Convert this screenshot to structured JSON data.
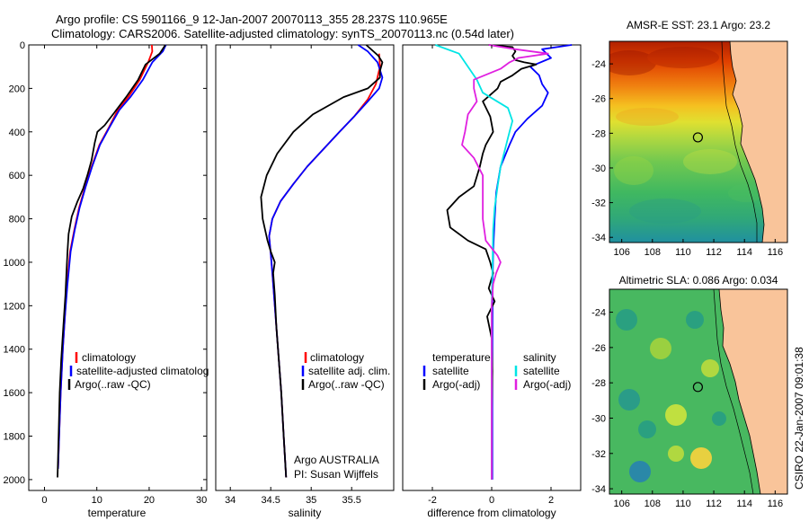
{
  "figure": {
    "title_line1": "Argo profile: CS 5901166_9 12-Jan-2007 20070113_355 28.237S 110.965E",
    "title_line2": "Climatology: CARS2006. Satellite-adjusted climatology: synTS_20070113.nc (0.54d later)",
    "footer_vertical": "CSIRO 22-Jan-2007 09:01:38"
  },
  "colors": {
    "climatology": "#ff0000",
    "satellite": "#0000ff",
    "argo": "#000000",
    "salinity_satellite": "#00e5e5",
    "salinity_argo": "#e020e0",
    "land": "#f9c49a"
  },
  "chart_data": [
    {
      "id": "temperature",
      "type": "line",
      "xlabel": "temperature",
      "ylabel": "",
      "xlim": [
        -3,
        31
      ],
      "ylim": [
        2050,
        0
      ],
      "y_inverted": true,
      "xticks": [
        0,
        10,
        20,
        30
      ],
      "yticks": [
        0,
        200,
        400,
        600,
        800,
        1000,
        1200,
        1400,
        1600,
        1800,
        2000
      ],
      "legend": [
        "climatology",
        "satellite-adjusted climatolog",
        "Argo(..raw -QC)"
      ],
      "legend_position": "lower-right",
      "series": [
        {
          "name": "climatology",
          "color": "#ff0000",
          "points": [
            [
              20.5,
              0
            ],
            [
              20.6,
              30
            ],
            [
              19.8,
              80
            ],
            [
              18.2,
              160
            ],
            [
              16,
              240
            ],
            [
              14,
              300
            ],
            [
              12.3,
              380
            ],
            [
              10.5,
              460
            ],
            [
              9,
              560
            ],
            [
              7.8,
              650
            ],
            [
              6.6,
              750
            ],
            [
              5.7,
              850
            ],
            [
              4.9,
              950
            ],
            [
              4.3,
              1100
            ],
            [
              3.9,
              1250
            ],
            [
              3.5,
              1400
            ],
            [
              3.1,
              1600
            ],
            [
              2.8,
              1800
            ],
            [
              2.6,
              1950
            ]
          ]
        },
        {
          "name": "satellite-adjusted climatolog",
          "color": "#0000ff",
          "points": [
            [
              23.2,
              0
            ],
            [
              22.6,
              30
            ],
            [
              20.6,
              80
            ],
            [
              18.8,
              160
            ],
            [
              16.4,
              240
            ],
            [
              14.3,
              300
            ],
            [
              12.4,
              380
            ],
            [
              10.6,
              460
            ],
            [
              9.1,
              560
            ],
            [
              7.9,
              650
            ],
            [
              6.7,
              750
            ],
            [
              5.8,
              850
            ],
            [
              5,
              950
            ],
            [
              4.4,
              1100
            ],
            [
              3.9,
              1250
            ],
            [
              3.5,
              1400
            ],
            [
              3.1,
              1600
            ],
            [
              2.8,
              1800
            ],
            [
              2.6,
              1950
            ]
          ]
        },
        {
          "name": "Argo(..raw -QC)",
          "color": "#000000",
          "points": [
            [
              23.1,
              0
            ],
            [
              22,
              40
            ],
            [
              19.3,
              90
            ],
            [
              17.9,
              160
            ],
            [
              15.6,
              240
            ],
            [
              13.4,
              310
            ],
            [
              11.5,
              370
            ],
            [
              10.1,
              400
            ],
            [
              9.6,
              450
            ],
            [
              9,
              530
            ],
            [
              8.2,
              600
            ],
            [
              7.4,
              660
            ],
            [
              6.3,
              720
            ],
            [
              5.2,
              790
            ],
            [
              4.6,
              870
            ],
            [
              4.4,
              950
            ],
            [
              4.2,
              1050
            ],
            [
              4,
              1150
            ],
            [
              3.6,
              1300
            ],
            [
              3.2,
              1450
            ],
            [
              2.9,
              1600
            ],
            [
              2.7,
              1800
            ],
            [
              2.5,
              1990
            ]
          ]
        }
      ]
    },
    {
      "id": "salinity",
      "type": "line",
      "xlabel": "salinity",
      "ylabel": "",
      "xlim": [
        33.82,
        36.02
      ],
      "ylim": [
        2050,
        0
      ],
      "y_inverted": true,
      "xticks": [
        34,
        34.5,
        35,
        35.5
      ],
      "xtick_labels": [
        "34",
        "34.5",
        "35",
        "35.5"
      ],
      "legend": [
        "climatology",
        "satellite adj. clim.",
        "Argo(..raw -QC)"
      ],
      "legend_position": "lower-right",
      "annotation_lines": [
        "Argo AUSTRALIA",
        "PI: Susan Wijffels"
      ],
      "series": [
        {
          "name": "climatology",
          "color": "#ff0000",
          "points": [
            [
              35.84,
              40
            ],
            [
              35.85,
              100
            ],
            [
              35.8,
              180
            ],
            [
              35.7,
              250
            ],
            [
              35.53,
              330
            ],
            [
              35.35,
              400
            ],
            [
              35.15,
              480
            ],
            [
              34.95,
              560
            ],
            [
              34.78,
              640
            ],
            [
              34.62,
              720
            ],
            [
              34.52,
              800
            ],
            [
              34.48,
              880
            ],
            [
              34.5,
              960
            ],
            [
              34.52,
              1050
            ],
            [
              34.55,
              1200
            ],
            [
              34.59,
              1400
            ],
            [
              34.63,
              1600
            ],
            [
              34.66,
              1800
            ],
            [
              34.69,
              1990
            ]
          ]
        },
        {
          "name": "satellite adj. clim.",
          "color": "#0000ff",
          "points": [
            [
              35.58,
              0
            ],
            [
              35.7,
              30
            ],
            [
              35.82,
              80
            ],
            [
              35.88,
              150
            ],
            [
              35.84,
              200
            ],
            [
              35.7,
              260
            ],
            [
              35.53,
              330
            ],
            [
              35.35,
              400
            ],
            [
              35.15,
              480
            ],
            [
              34.95,
              560
            ],
            [
              34.78,
              640
            ],
            [
              34.62,
              720
            ],
            [
              34.52,
              800
            ],
            [
              34.48,
              880
            ],
            [
              34.5,
              960
            ],
            [
              34.52,
              1050
            ],
            [
              34.55,
              1200
            ],
            [
              34.59,
              1400
            ],
            [
              34.63,
              1600
            ],
            [
              34.66,
              1800
            ],
            [
              34.69,
              1990
            ]
          ]
        },
        {
          "name": "Argo(..raw -QC)",
          "color": "#000000",
          "points": [
            [
              35.68,
              0
            ],
            [
              35.83,
              50
            ],
            [
              35.88,
              80
            ],
            [
              35.85,
              120
            ],
            [
              35.85,
              150
            ],
            [
              35.7,
              200
            ],
            [
              35.4,
              240
            ],
            [
              35.02,
              320
            ],
            [
              34.78,
              400
            ],
            [
              34.58,
              500
            ],
            [
              34.45,
              600
            ],
            [
              34.38,
              700
            ],
            [
              34.4,
              800
            ],
            [
              34.46,
              900
            ],
            [
              34.5,
              950
            ],
            [
              34.55,
              1000
            ],
            [
              34.53,
              1050
            ],
            [
              34.55,
              1150
            ],
            [
              34.57,
              1300
            ],
            [
              34.6,
              1450
            ],
            [
              34.63,
              1600
            ],
            [
              34.66,
              1800
            ],
            [
              34.69,
              1990
            ]
          ]
        }
      ]
    },
    {
      "id": "difference",
      "type": "line",
      "xlabel": "difference from climatology",
      "ylabel": "",
      "xlim": [
        -3,
        3
      ],
      "ylim": [
        2050,
        0
      ],
      "y_inverted": true,
      "xticks": [
        -2,
        0,
        2
      ],
      "legend_columns": [
        {
          "heading": "temperature",
          "entries": [
            "satellite",
            "Argo(-adj)"
          ]
        },
        {
          "heading": "salinity",
          "entries": [
            "satellite",
            "Argo(-adj)"
          ]
        }
      ],
      "legend_position": "lower-center",
      "series": [
        {
          "name": "temperature satellite",
          "color": "#0000ff",
          "points": [
            [
              2.7,
              0
            ],
            [
              1.7,
              20
            ],
            [
              2,
              60
            ],
            [
              1.3,
              100
            ],
            [
              1.6,
              140
            ],
            [
              1.7,
              180
            ],
            [
              1.9,
              220
            ],
            [
              1.7,
              280
            ],
            [
              1.2,
              340
            ],
            [
              0.8,
              400
            ],
            [
              0.6,
              460
            ],
            [
              0.3,
              560
            ],
            [
              0.15,
              680
            ],
            [
              0.1,
              800
            ],
            [
              0.05,
              950
            ],
            [
              0.03,
              1100
            ],
            [
              0.02,
              1500
            ],
            [
              0.02,
              2000
            ]
          ]
        },
        {
          "name": "temperature Argo(-adj)",
          "color": "#000000",
          "points": [
            [
              -0.1,
              0
            ],
            [
              0.7,
              10
            ],
            [
              0.8,
              30
            ],
            [
              0.7,
              50
            ],
            [
              0.8,
              70
            ],
            [
              1.1,
              80
            ],
            [
              1.5,
              90
            ],
            [
              1.0,
              110
            ],
            [
              0.7,
              140
            ],
            [
              0.3,
              170
            ],
            [
              0.2,
              200
            ],
            [
              -0.3,
              260
            ],
            [
              -0.05,
              330
            ],
            [
              0.05,
              400
            ],
            [
              -0.2,
              460
            ],
            [
              -0.3,
              500
            ],
            [
              -0.4,
              560
            ],
            [
              -0.6,
              650
            ],
            [
              -1.1,
              700
            ],
            [
              -1.5,
              760
            ],
            [
              -1.4,
              840
            ],
            [
              -0.8,
              900
            ],
            [
              -0.2,
              940
            ],
            [
              -0.05,
              1000
            ],
            [
              0.05,
              1050
            ],
            [
              -0.1,
              1120
            ],
            [
              0.1,
              1180
            ],
            [
              -0.15,
              1250
            ],
            [
              0,
              1350
            ],
            [
              0.02,
              1500
            ],
            [
              0,
              1700
            ],
            [
              0,
              2000
            ]
          ]
        },
        {
          "name": "salinity satellite",
          "color": "#00e5e5",
          "points": [
            [
              -1.9,
              0
            ],
            [
              -1.1,
              40
            ],
            [
              -0.8,
              100
            ],
            [
              -0.5,
              160
            ],
            [
              -0.3,
              220
            ],
            [
              0.55,
              290
            ],
            [
              0.7,
              350
            ],
            [
              0.6,
              400
            ],
            [
              0.45,
              480
            ],
            [
              0.3,
              560
            ],
            [
              0.2,
              650
            ],
            [
              0.1,
              750
            ],
            [
              0.05,
              850
            ],
            [
              0.03,
              1000
            ],
            [
              0,
              1200
            ],
            [
              0,
              2000
            ]
          ]
        },
        {
          "name": "salinity Argo(-adj)",
          "color": "#e020e0",
          "points": [
            [
              -0.1,
              0
            ],
            [
              0.8,
              20
            ],
            [
              1.9,
              40
            ],
            [
              0.9,
              60
            ],
            [
              0.6,
              80
            ],
            [
              0.3,
              110
            ],
            [
              -0.6,
              160
            ],
            [
              -0.6,
              200
            ],
            [
              -0.5,
              260
            ],
            [
              -0.8,
              320
            ],
            [
              -0.9,
              400
            ],
            [
              -1.0,
              460
            ],
            [
              -0.6,
              520
            ],
            [
              -0.3,
              600
            ],
            [
              -0.3,
              700
            ],
            [
              -0.3,
              800
            ],
            [
              -0.2,
              900
            ],
            [
              0.2,
              970
            ],
            [
              0.3,
              1000
            ],
            [
              0.15,
              1050
            ],
            [
              0.05,
              1100
            ],
            [
              0,
              1200
            ],
            [
              0,
              2000
            ]
          ]
        }
      ]
    },
    {
      "id": "sst_map",
      "type": "heatmap",
      "title": "AMSR-E SST: 23.1 Argo: 23.2",
      "xlim": [
        105.2,
        116.8
      ],
      "ylim": [
        -34.3,
        -22.7
      ],
      "xticks": [
        106,
        108,
        110,
        112,
        114,
        116
      ],
      "yticks": [
        -24,
        -26,
        -28,
        -30,
        -32,
        -34
      ],
      "argo_position": {
        "lon": 110.965,
        "lat": -28.237
      }
    },
    {
      "id": "sla_map",
      "type": "heatmap",
      "title": "Altimetric SLA: 0.086 Argo: 0.034",
      "xlim": [
        105.2,
        116.8
      ],
      "ylim": [
        -34.3,
        -22.7
      ],
      "xticks": [
        106,
        108,
        110,
        112,
        114,
        116
      ],
      "yticks": [
        -24,
        -26,
        -28,
        -30,
        -32,
        -34
      ],
      "argo_position": {
        "lon": 110.965,
        "lat": -28.237
      }
    }
  ]
}
